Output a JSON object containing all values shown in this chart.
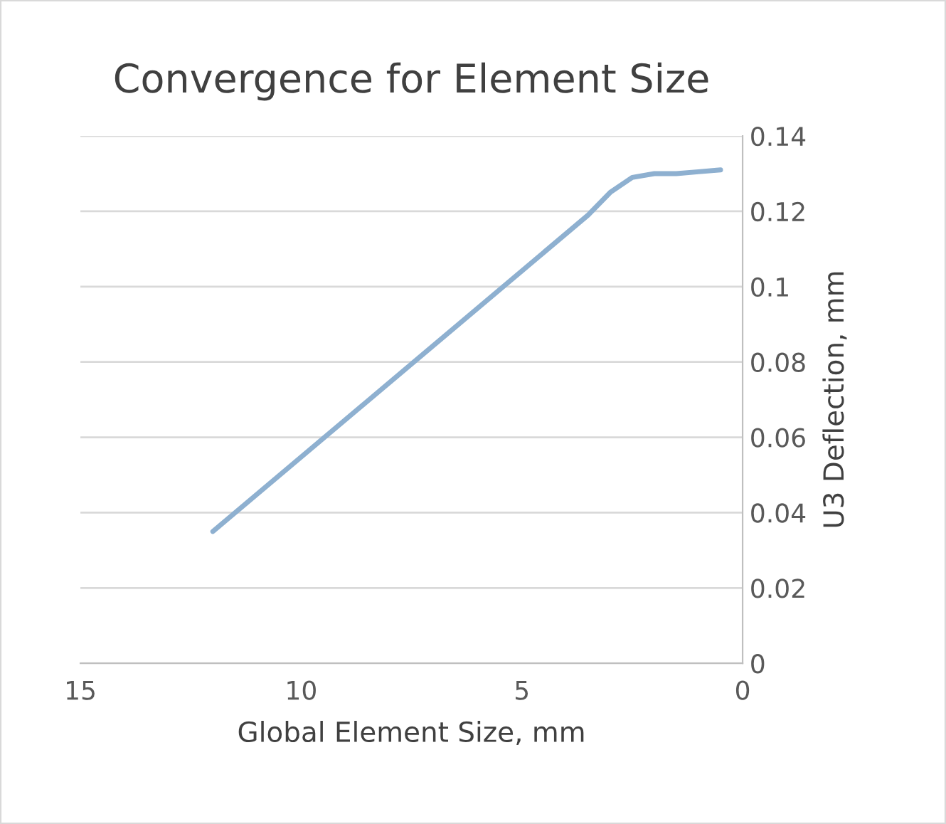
{
  "chart_data": {
    "type": "line",
    "title": "Convergence for Element Size",
    "xlabel": "Global Element Size, mm",
    "ylabel": "U3 Deflection, mm",
    "x": [
      12,
      3.5,
      3,
      2.5,
      2,
      1.5,
      1,
      0.5
    ],
    "series": [
      {
        "color": "#8eb0d0",
        "values": [
          0.035,
          0.119,
          0.125,
          0.129,
          0.13,
          0.13,
          0.1305,
          0.131
        ]
      }
    ],
    "xlim": [
      15,
      0
    ],
    "xticks": [
      15,
      10,
      5,
      0
    ],
    "ylim": [
      0,
      0.14
    ],
    "yticks": [
      0,
      0.02,
      0.04,
      0.06,
      0.08,
      0.1,
      0.12,
      0.14
    ],
    "grid": "y",
    "legend": false,
    "marker": "none",
    "line_style": "solid"
  }
}
